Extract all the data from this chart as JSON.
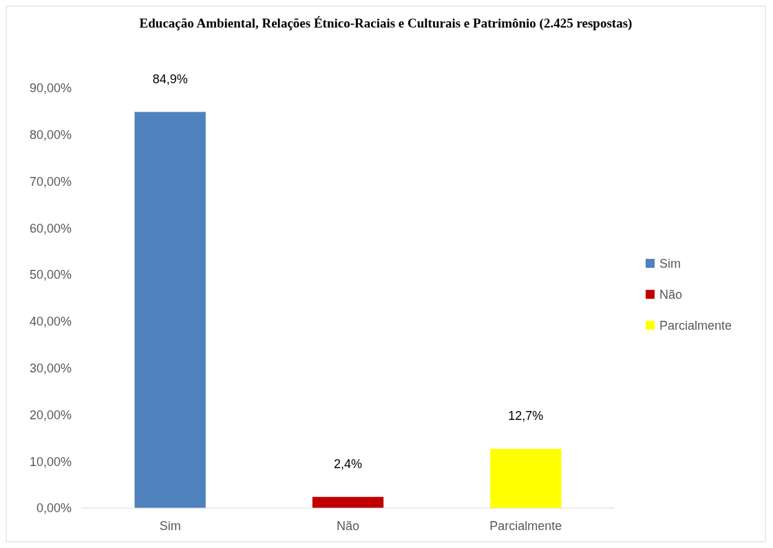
{
  "chart_data": {
    "type": "bar",
    "title": "Educação Ambiental, Relações Étnico-Raciais e Culturais e Patrimônio (2.425 respostas)",
    "categories": [
      "Sim",
      "Não",
      "Parcialmente"
    ],
    "series": [
      {
        "name": "Sim",
        "color": "#4f81bd",
        "values": [
          84.9,
          null,
          null
        ],
        "value_labels": [
          "84,9%",
          null,
          null
        ]
      },
      {
        "name": "Não",
        "color": "#c00000",
        "values": [
          null,
          2.4,
          null
        ],
        "value_labels": [
          null,
          "2,4%",
          null
        ]
      },
      {
        "name": "Parcialmente",
        "color": "#ffff00",
        "values": [
          null,
          null,
          12.7
        ],
        "value_labels": [
          null,
          null,
          "12,7%"
        ]
      }
    ],
    "ylim": [
      0,
      90
    ],
    "yticks": [
      {
        "value": 0,
        "label": "0,00%"
      },
      {
        "value": 10,
        "label": "10,00%"
      },
      {
        "value": 20,
        "label": "20,00%"
      },
      {
        "value": 30,
        "label": "30,00%"
      },
      {
        "value": 40,
        "label": "40,00%"
      },
      {
        "value": 50,
        "label": "50,00%"
      },
      {
        "value": 60,
        "label": "60,00%"
      },
      {
        "value": 70,
        "label": "70,00%"
      },
      {
        "value": 80,
        "label": "80,00%"
      },
      {
        "value": 90,
        "label": "90,00%"
      }
    ],
    "legend": "right"
  }
}
